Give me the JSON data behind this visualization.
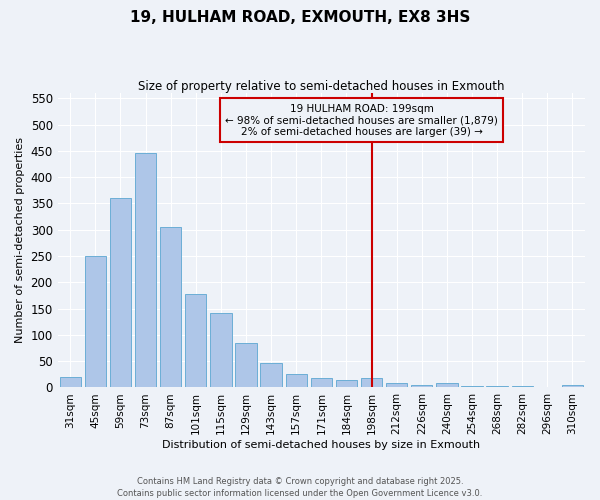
{
  "title": "19, HULHAM ROAD, EXMOUTH, EX8 3HS",
  "subtitle": "Size of property relative to semi-detached houses in Exmouth",
  "xlabel": "Distribution of semi-detached houses by size in Exmouth",
  "ylabel": "Number of semi-detached properties",
  "categories": [
    "31sqm",
    "45sqm",
    "59sqm",
    "73sqm",
    "87sqm",
    "101sqm",
    "115sqm",
    "129sqm",
    "143sqm",
    "157sqm",
    "171sqm",
    "184sqm",
    "198sqm",
    "212sqm",
    "226sqm",
    "240sqm",
    "254sqm",
    "268sqm",
    "282sqm",
    "296sqm",
    "310sqm"
  ],
  "values": [
    20,
    250,
    360,
    445,
    305,
    178,
    142,
    85,
    47,
    25,
    18,
    15,
    18,
    8,
    5,
    8,
    2,
    2,
    2,
    0,
    5
  ],
  "bar_color": "#aec6e8",
  "bar_edge_color": "#6baed6",
  "vline_x_index": 12,
  "vline_color": "#cc0000",
  "annotation_text": "19 HULHAM ROAD: 199sqm\n← 98% of semi-detached houses are smaller (1,879)\n2% of semi-detached houses are larger (39) →",
  "ylim": [
    0,
    560
  ],
  "yticks": [
    0,
    50,
    100,
    150,
    200,
    250,
    300,
    350,
    400,
    450,
    500,
    550
  ],
  "footer_line1": "Contains HM Land Registry data © Crown copyright and database right 2025.",
  "footer_line2": "Contains public sector information licensed under the Open Government Licence v3.0.",
  "background_color": "#eef2f8",
  "grid_color": "#ffffff"
}
